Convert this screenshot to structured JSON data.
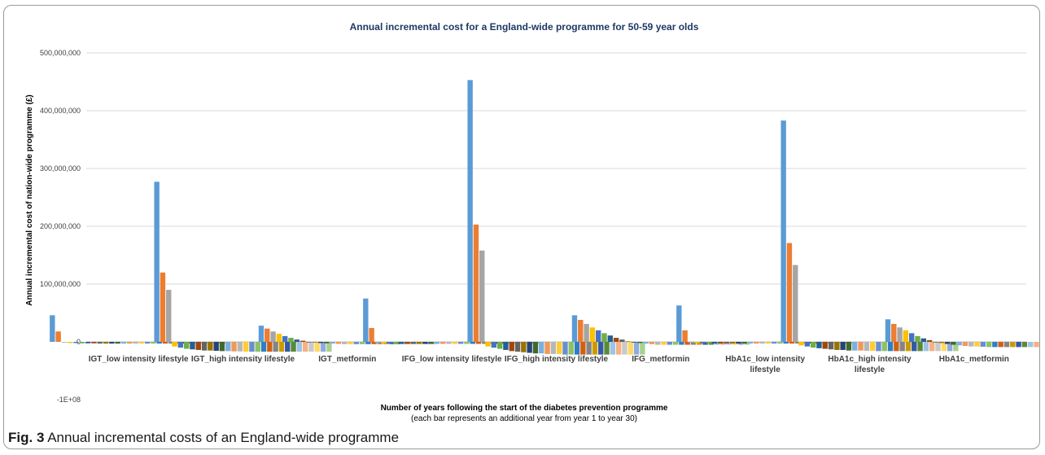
{
  "caption": {
    "label": "Fig. 3",
    "text": "Annual incremental costs of an England-wide programme"
  },
  "chart_data": {
    "type": "bar",
    "title": "Annual incremental cost for a England-wide programme for 50-59 year olds",
    "xlabel": "Number of years following the start of the diabetes prevention programme",
    "xlabel_sub": "(each bar represents an additional year from year 1 to year 30)",
    "ylabel": "Annual incremental cost of nation-wide programme (£)",
    "ylim": [
      -100000000,
      500000000
    ],
    "yticks": [
      {
        "value": 500000000,
        "label": "500,000,000"
      },
      {
        "value": 400000000,
        "label": "400,000,000"
      },
      {
        "value": 300000000,
        "label": "300,000,000"
      },
      {
        "value": 200000000,
        "label": "200,000,000"
      },
      {
        "value": 100000000,
        "label": "100,000,000"
      },
      {
        "value": 0,
        "label": "0"
      },
      {
        "value": -100000000,
        "label": "-1E+08"
      }
    ],
    "grid": true,
    "legend": "none",
    "categories": [
      [
        "IGT_low intensity lifestyle"
      ],
      [
        "IGT_high intensity lifestyle"
      ],
      [
        "IGT_metformin"
      ],
      [
        "IFG_low intensity lifestyle"
      ],
      [
        "IFG_high intensity lifestyle"
      ],
      [
        "IFG_metformin"
      ],
      [
        "HbA1c_low intensity",
        "lifestyle"
      ],
      [
        "HbA1c_high intensity",
        "lifestyle"
      ],
      [
        "HbA1c_metformin"
      ]
    ],
    "series_colors": [
      "#5b9bd5",
      "#ed7d31",
      "#a5a5a5",
      "#ffc000",
      "#4472c4",
      "#70ad47",
      "#255e91",
      "#9e480e",
      "#636363",
      "#997300",
      "#264478",
      "#43682b",
      "#7cafdd",
      "#f1975a",
      "#b7b7b7",
      "#ffcd33",
      "#698ed0",
      "#8cc168",
      "#327dc2",
      "#d26012",
      "#848484",
      "#cc9a00",
      "#335aa1",
      "#5a8a39",
      "#9dc3e6",
      "#f4b183",
      "#c9c9c9",
      "#ffd966",
      "#8faadc",
      "#a9d18e"
    ],
    "values_millions": [
      [
        46,
        18,
        -1,
        -2,
        -2,
        -2.5,
        -2.5,
        -2.5,
        -3,
        -3,
        -3,
        -3,
        -3,
        -3,
        -3,
        -3,
        -3,
        -3,
        -3,
        -3,
        -3,
        -3,
        -3,
        -3,
        -3,
        -3,
        -3,
        -3,
        -3,
        -3
      ],
      [
        277,
        120,
        90,
        -8,
        -10,
        -12,
        -13,
        -14,
        -15,
        -15,
        -15.5,
        -16,
        -16,
        -16.5,
        -16.5,
        -17,
        -17,
        -17,
        -17,
        -17,
        -17,
        -17,
        -17,
        -17,
        -17,
        -17,
        -17,
        -17,
        -17,
        -17
      ],
      [
        28,
        23,
        18,
        14,
        10,
        7,
        4,
        2,
        0,
        -1,
        -2,
        -2.5,
        -3,
        -3.5,
        -4,
        -4,
        -4,
        -4,
        -4,
        -4,
        -4,
        -4,
        -4,
        -4,
        -4,
        -4,
        -4,
        -4,
        -4,
        -4
      ],
      [
        75,
        24,
        -2,
        -2.5,
        -3,
        -3,
        -3.5,
        -3.5,
        -3.5,
        -3.5,
        -3.5,
        -3.5,
        -3.5,
        -3.5,
        -3.5,
        -3.5,
        -3.5,
        -3.5,
        -3.5,
        -3.5,
        -3.5,
        -3.5,
        -3.5,
        -3.5,
        -3.5,
        -3.5,
        -3.5,
        -3.5,
        -3.5,
        -3.5
      ],
      [
        453,
        203,
        158,
        -8,
        -10,
        -12,
        -14,
        -16,
        -17,
        -18,
        -19,
        -20,
        -20,
        -21,
        -21,
        -21,
        -22,
        -22,
        -22,
        -22,
        -22,
        -22,
        -22,
        -22,
        -22,
        -22,
        -22,
        -22,
        -22,
        -22
      ],
      [
        46,
        38,
        31,
        25,
        20,
        15,
        11,
        7,
        4,
        1,
        -1,
        -2,
        -3,
        -4,
        -5,
        -5,
        -5,
        -5,
        -5,
        -5,
        -5,
        -5,
        -5,
        -5,
        -5,
        -5,
        -5,
        -5,
        -5,
        -5
      ],
      [
        63,
        20,
        -1.5,
        -2,
        -2.5,
        -2.5,
        -3,
        -3,
        -3,
        -3,
        -3,
        -3,
        -3,
        -3,
        -3,
        -3,
        -3,
        -3,
        -3,
        -3,
        -3,
        -3,
        -3,
        -3,
        -3,
        -3,
        -3,
        -3,
        -3,
        -3
      ],
      [
        383,
        171,
        133,
        -6,
        -8,
        -10,
        -11,
        -12,
        -13,
        -14,
        -14,
        -15,
        -15,
        -15,
        -15.5,
        -15.5,
        -16,
        -16,
        -16,
        -16,
        -16,
        -16,
        -16,
        -16,
        -16,
        -16,
        -16,
        -16,
        -16,
        -16
      ],
      [
        39,
        31,
        25,
        20,
        15,
        10,
        6,
        3,
        0,
        -2,
        -3.5,
        -5,
        -6,
        -7,
        -8,
        -8,
        -8.5,
        -9,
        -9,
        -9,
        -9,
        -9,
        -9,
        -9,
        -9,
        -9,
        -9,
        -9,
        -9,
        -9
      ]
    ]
  }
}
